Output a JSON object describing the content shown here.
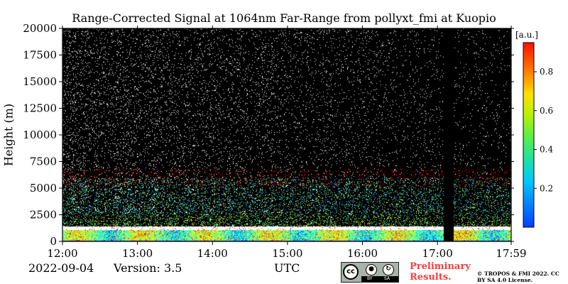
{
  "chart_data": {
    "type": "heatmap",
    "title": "Range-Corrected Signal at 1064nm Far-Range from pollyxt_fmi at Kuopio",
    "xlabel": "UTC",
    "ylabel": "Height (m)",
    "x_ticks": [
      "12:00",
      "13:00",
      "14:00",
      "15:00",
      "16:00",
      "17:00",
      "17:59"
    ],
    "x_range": [
      "12:00",
      "17:59"
    ],
    "y_ticks": [
      0,
      2500,
      5000,
      7500,
      10000,
      12500,
      15000,
      17500,
      20000
    ],
    "ylim": [
      0,
      20000
    ],
    "colorbar": {
      "unit": "[a.u.]",
      "ticks": [
        0.2,
        0.4,
        0.6,
        0.8
      ],
      "range": [
        0,
        0.95
      ],
      "colormap": "jet"
    },
    "features": {
      "boundary_layer_top_m": 1400,
      "noise_above_m": 2500,
      "data_gap": [
        "17:05",
        "17:13"
      ]
    },
    "background_color": "#000000"
  },
  "footer": {
    "date": "2022-09-04",
    "version": "Version: 3.5",
    "preliminary": "Preliminary Results.",
    "copyright": "© TROPOS & FMI 2022. CC BY SA 4.0 License.",
    "license_badge": {
      "cc": "cc",
      "by": "BY",
      "sa": "SA"
    }
  }
}
